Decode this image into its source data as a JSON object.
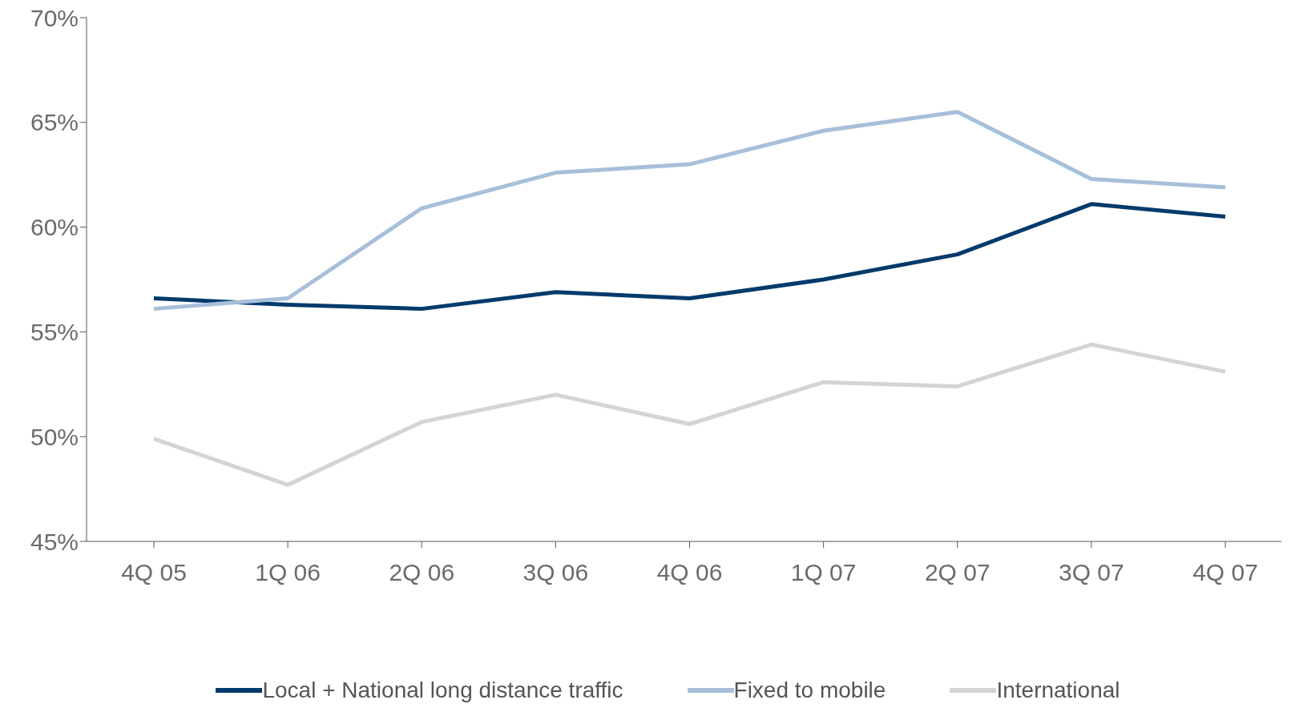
{
  "chart_data": {
    "type": "line",
    "categories": [
      "4Q 05",
      "1Q 06",
      "2Q 06",
      "3Q 06",
      "4Q 06",
      "1Q 07",
      "2Q 07",
      "3Q 07",
      "4Q 07"
    ],
    "series": [
      {
        "name": "Local + National long distance traffic",
        "color": "#003a6b",
        "values": [
          56.6,
          56.3,
          56.1,
          56.9,
          56.6,
          57.5,
          58.7,
          61.1,
          60.5
        ]
      },
      {
        "name": "Fixed to mobile",
        "color": "#a7bfd9",
        "values": [
          56.1,
          56.6,
          60.9,
          62.6,
          63.0,
          64.6,
          65.5,
          62.3,
          61.9
        ]
      },
      {
        "name": "International",
        "color": "#d4d4d4",
        "values": [
          49.9,
          47.7,
          50.7,
          52.0,
          50.6,
          52.6,
          52.4,
          54.4,
          53.1
        ]
      }
    ],
    "ylim": [
      45,
      70
    ],
    "yticks": [
      {
        "value": 45,
        "label": "45%"
      },
      {
        "value": 50,
        "label": "50%"
      },
      {
        "value": 55,
        "label": "55%"
      },
      {
        "value": 60,
        "label": "60%"
      },
      {
        "value": 65,
        "label": "65%"
      },
      {
        "value": 70,
        "label": "70%"
      }
    ],
    "grid": false,
    "legend": "bottom",
    "marker": "none",
    "line_style": "solid"
  }
}
